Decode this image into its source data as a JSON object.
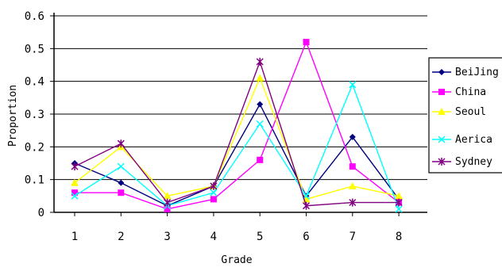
{
  "chart_data": {
    "type": "line",
    "title": "",
    "xlabel": "Grade",
    "ylabel": "Proportion",
    "x": [
      1,
      2,
      3,
      4,
      5,
      6,
      7,
      8
    ],
    "x_tick_labels": [
      "1",
      "2",
      "3",
      "4",
      "5",
      "6",
      "7",
      "8"
    ],
    "ylim": [
      0,
      0.6
    ],
    "y_ticks": [
      0,
      0.1,
      0.2,
      0.3,
      0.4,
      0.5,
      0.6
    ],
    "y_tick_labels": [
      "0",
      "0.1",
      "0.2",
      "0.3",
      "0.4",
      "0.5",
      "0.6"
    ],
    "grid": "horizontal",
    "legend_position": "right",
    "series": [
      {
        "name": "BeiJing",
        "color": "#000080",
        "marker": "diamond",
        "values": [
          0.15,
          0.09,
          0.02,
          0.08,
          0.33,
          0.05,
          0.23,
          0.04
        ]
      },
      {
        "name": "China",
        "color": "#ff00ff",
        "marker": "square",
        "values": [
          0.06,
          0.06,
          0.01,
          0.04,
          0.16,
          0.52,
          0.14,
          0.03
        ]
      },
      {
        "name": "Seoul",
        "color": "#ffff00",
        "marker": "triangle",
        "values": [
          0.09,
          0.2,
          0.05,
          0.08,
          0.41,
          0.04,
          0.08,
          0.05
        ]
      },
      {
        "name": "Aerica",
        "color": "#00ffff",
        "marker": "x",
        "values": [
          0.05,
          0.14,
          0.02,
          0.06,
          0.27,
          0.05,
          0.39,
          0.01
        ]
      },
      {
        "name": "Sydney",
        "color": "#800080",
        "marker": "star",
        "values": [
          0.14,
          0.21,
          0.03,
          0.08,
          0.46,
          0.02,
          0.03,
          0.03
        ]
      }
    ]
  }
}
